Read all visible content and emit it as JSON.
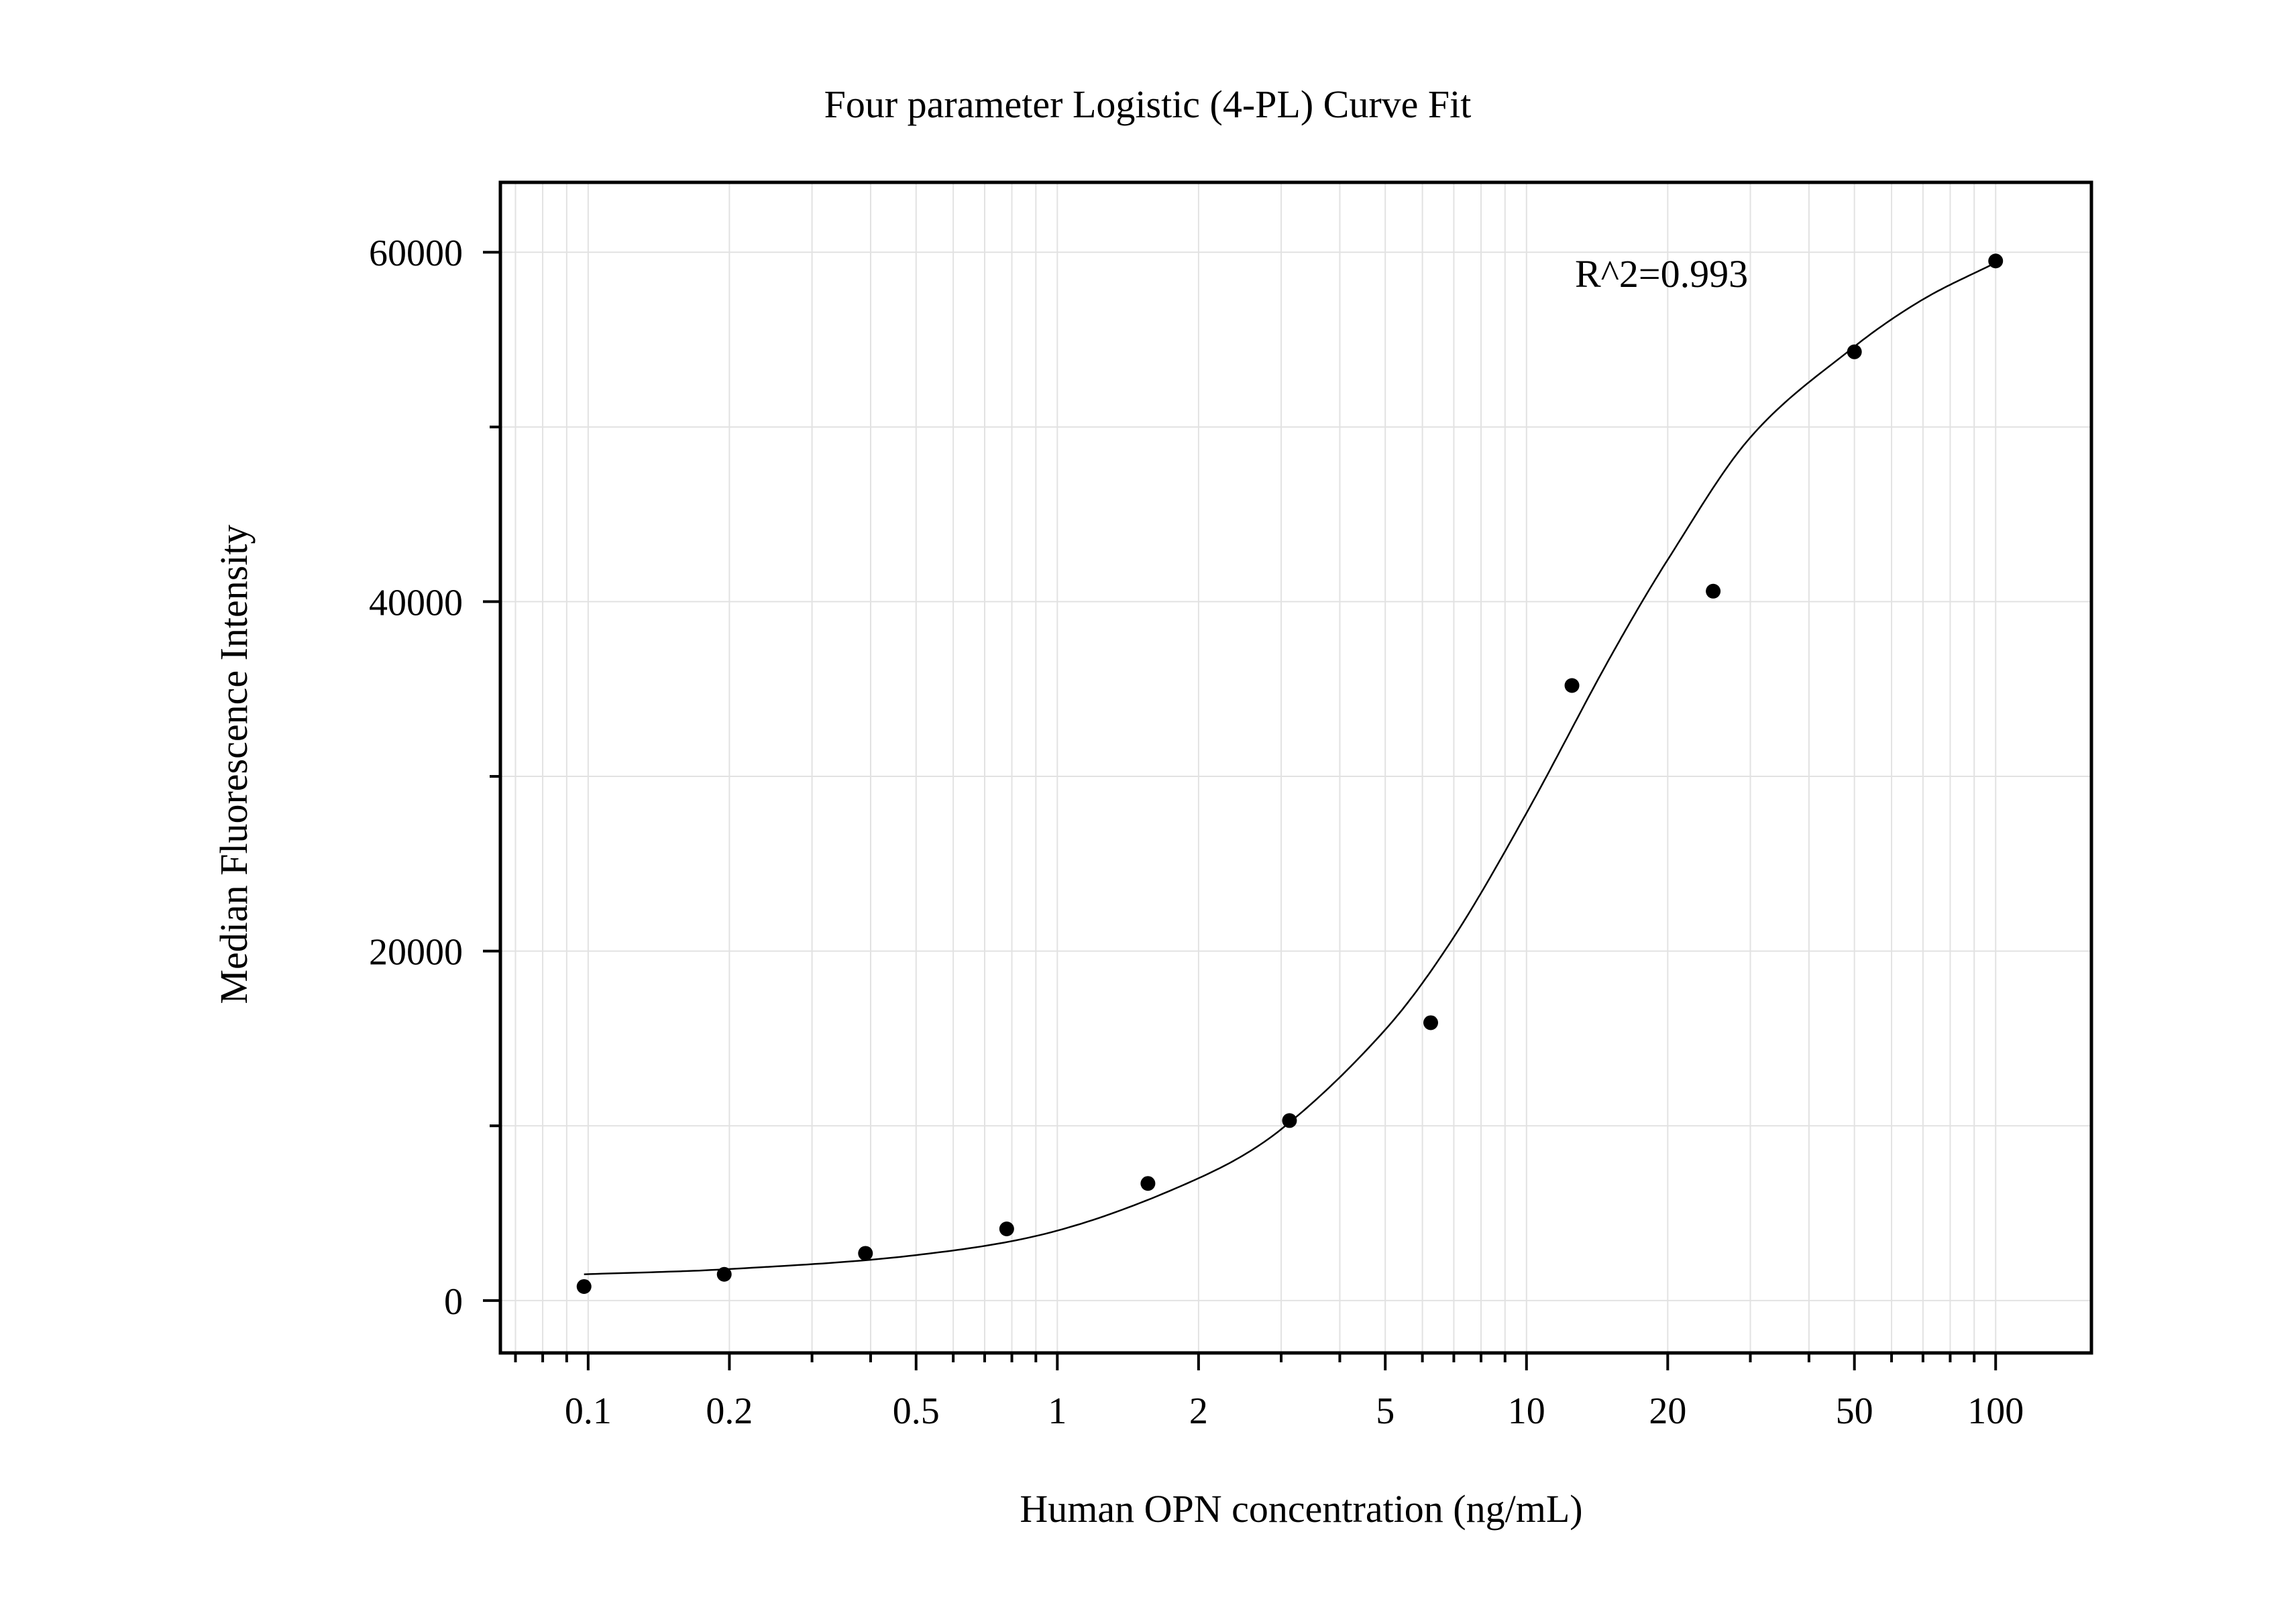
{
  "chart_data": {
    "type": "scatter",
    "title": "Four parameter Logistic (4-PL) Curve Fit",
    "xlabel": "Human OPN concentration (ng/mL)",
    "ylabel": "Median Fluorescence Intensity",
    "xscale": "log",
    "xlim": [
      0.065,
      160
    ],
    "ylim": [
      -3000,
      64000
    ],
    "grid": true,
    "x_ticks": [
      {
        "value": 0.1,
        "label": "0.1"
      },
      {
        "value": 0.2,
        "label": "0.2"
      },
      {
        "value": 0.5,
        "label": "0.5"
      },
      {
        "value": 1,
        "label": "1"
      },
      {
        "value": 2,
        "label": "2"
      },
      {
        "value": 5,
        "label": "5"
      },
      {
        "value": 10,
        "label": "10"
      },
      {
        "value": 20,
        "label": "20"
      },
      {
        "value": 50,
        "label": "50"
      },
      {
        "value": 100,
        "label": "100"
      }
    ],
    "y_ticks": [
      {
        "value": 0,
        "label": "0"
      },
      {
        "value": 20000,
        "label": "20000"
      },
      {
        "value": 40000,
        "label": "40000"
      },
      {
        "value": 60000,
        "label": "60000"
      }
    ],
    "series": [
      {
        "points": [
          {
            "x": 0.098,
            "y": 800
          },
          {
            "x": 0.195,
            "y": 1500
          },
          {
            "x": 0.39,
            "y": 2700
          },
          {
            "x": 0.78,
            "y": 4100
          },
          {
            "x": 1.56,
            "y": 6700
          },
          {
            "x": 3.125,
            "y": 10300
          },
          {
            "x": 6.25,
            "y": 15900
          },
          {
            "x": 12.5,
            "y": 35200
          },
          {
            "x": 25,
            "y": 40600
          },
          {
            "x": 50,
            "y": 54300
          },
          {
            "x": 100,
            "y": 59500
          }
        ]
      }
    ],
    "fit": {
      "model": "4PL",
      "x": [
        0.098,
        0.2,
        0.5,
        1,
        2,
        3,
        5,
        7,
        10,
        15,
        20,
        30,
        50,
        70,
        100
      ],
      "y": [
        1500,
        1800,
        2600,
        4000,
        7000,
        9800,
        15500,
        20800,
        27900,
        36700,
        42400,
        49400,
        54600,
        57300,
        59400
      ]
    },
    "annotations": [
      {
        "text": "R^2=0.993"
      }
    ]
  }
}
